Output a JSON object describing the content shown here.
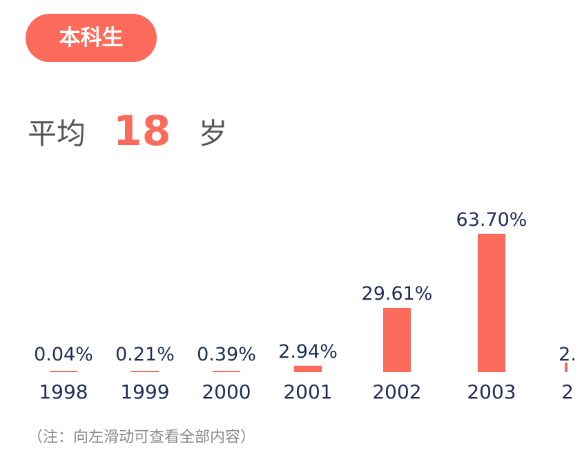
{
  "tag": "本科生",
  "average": {
    "prefix": "平均",
    "value": "18",
    "unit": "岁"
  },
  "note": "（注：向左滑动可查看全部内容）",
  "colors": {
    "accent": "#fb6a5a",
    "label": "#1f2d5c",
    "note": "#8a8a8a"
  },
  "chart_data": {
    "type": "bar",
    "categories": [
      "1998",
      "1999",
      "2000",
      "2001",
      "2002",
      "2003",
      "2"
    ],
    "values": [
      0.04,
      0.21,
      0.39,
      2.94,
      29.61,
      63.7,
      null
    ],
    "labels": [
      "0.04%",
      "0.21%",
      "0.39%",
      "2.94%",
      "29.61%",
      "63.70%",
      "2."
    ],
    "ylim": [
      0,
      70
    ],
    "grid": false,
    "legend": "none"
  }
}
